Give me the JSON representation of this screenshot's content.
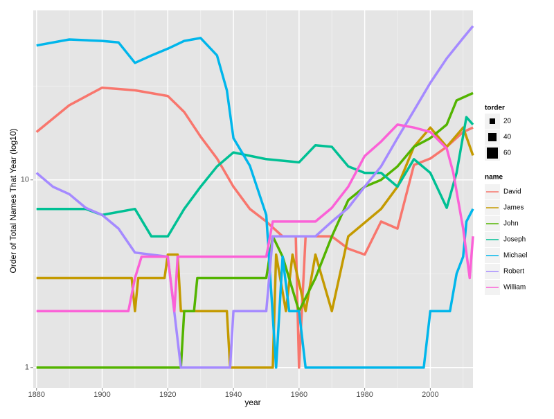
{
  "chart_data": {
    "type": "line",
    "x_label": "year",
    "y_label": "Order of Total Names That Year (log10)",
    "xlim": [
      1879,
      2013
    ],
    "xticks": [
      1880,
      1900,
      1920,
      1940,
      1960,
      1980,
      2000
    ],
    "xminor": [
      1890,
      1910,
      1930,
      1950,
      1970,
      1990,
      2010
    ],
    "ylim": [
      0.78,
      80
    ],
    "yticks": [
      1,
      10
    ],
    "yminor": [
      3.162,
      31.62
    ],
    "log_y": true,
    "grid": true,
    "size_legend": {
      "title": "torder",
      "labels": [
        20,
        40,
        60
      ]
    },
    "legend_title": "name",
    "series": [
      {
        "name": "David",
        "color": "#F8766D",
        "x": [
          1880,
          1890,
          1900,
          1910,
          1920,
          1925,
          1930,
          1935,
          1940,
          1945,
          1950,
          1955,
          1959,
          1960,
          1962,
          1970,
          1975,
          1980,
          1985,
          1990,
          1995,
          2000,
          2005,
          2010,
          2013
        ],
        "values": [
          18,
          25,
          31,
          30,
          28,
          23,
          17,
          13,
          9.2,
          7,
          6,
          5,
          5,
          1,
          5,
          5,
          4.3,
          4,
          6,
          5.5,
          12,
          13,
          15,
          18,
          19
        ]
      },
      {
        "name": "James",
        "color": "#C49A00",
        "x": [
          1880,
          1909,
          1910,
          1911,
          1919,
          1920,
          1923,
          1924,
          1938,
          1939,
          1952,
          1953,
          1956,
          1958,
          1962,
          1965,
          1970,
          1975,
          1985,
          1990,
          1995,
          2000,
          2005,
          2010,
          2013
        ],
        "values": [
          3,
          3,
          2,
          3,
          3,
          4,
          4,
          2,
          2,
          1,
          1,
          4,
          2,
          4,
          2,
          4,
          2,
          5,
          7,
          9.2,
          15,
          19,
          15,
          19,
          13.5
        ]
      },
      {
        "name": "John",
        "color": "#53B400",
        "x": [
          1880,
          1924,
          1925,
          1928,
          1929,
          1950,
          1952,
          1955,
          1960,
          1965,
          1970,
          1975,
          1980,
          1985,
          1990,
          1995,
          2000,
          2005,
          2008,
          2013
        ],
        "values": [
          1,
          1,
          2,
          2,
          3,
          3,
          5,
          3.9,
          2,
          3,
          5,
          7.8,
          9.2,
          10,
          11.8,
          15,
          16.7,
          19.7,
          26.5,
          29
        ]
      },
      {
        "name": "Joseph",
        "color": "#00C094",
        "x": [
          1880,
          1895,
          1900,
          1910,
          1915,
          1920,
          1925,
          1930,
          1935,
          1940,
          1950,
          1960,
          1965,
          1970,
          1975,
          1980,
          1985,
          1990,
          1995,
          2000,
          2005,
          2008,
          2011,
          2013
        ],
        "values": [
          7,
          7,
          6.5,
          7,
          5,
          5,
          7,
          9.2,
          11.8,
          14,
          12.9,
          12.4,
          15.3,
          15,
          11.8,
          10.9,
          10.9,
          9.2,
          12.9,
          10.9,
          7.1,
          10.9,
          21.6,
          19.7
        ]
      },
      {
        "name": "Michael",
        "color": "#00B6EB",
        "x": [
          1880,
          1890,
          1900,
          1905,
          1910,
          1915,
          1920,
          1925,
          1930,
          1935,
          1938,
          1940,
          1945,
          1950,
          1953,
          1955,
          1957,
          1960,
          1962,
          1998,
          2000,
          2006,
          2008,
          2010,
          2011,
          2013
        ],
        "values": [
          52,
          56,
          55,
          54,
          42,
          46,
          50,
          55,
          57,
          46,
          30,
          16.7,
          11.9,
          6.5,
          1,
          3.9,
          2,
          2,
          1,
          1,
          2,
          2,
          3.16,
          3.9,
          6,
          7
        ]
      },
      {
        "name": "Robert",
        "color": "#A58AFF",
        "x": [
          1880,
          1885,
          1890,
          1895,
          1900,
          1905,
          1910,
          1920,
          1924,
          1939,
          1940,
          1950,
          1952,
          1965,
          1970,
          1975,
          1980,
          1985,
          1990,
          1995,
          2000,
          2005,
          2010,
          2013
        ],
        "values": [
          10.9,
          9.2,
          8.4,
          7.1,
          6.5,
          5.5,
          4.1,
          3.9,
          1,
          1,
          2,
          2,
          5,
          5,
          6,
          7.1,
          9.2,
          11.8,
          16.7,
          23.4,
          32.9,
          44.4,
          57,
          66
        ]
      },
      {
        "name": "William",
        "color": "#FB61D7",
        "x": [
          1880,
          1908,
          1910,
          1912,
          1920,
          1922,
          1923,
          1950,
          1952,
          1965,
          1970,
          1975,
          1980,
          1985,
          1990,
          1995,
          2000,
          2005,
          2007,
          2010,
          2012,
          2013
        ],
        "values": [
          2,
          2,
          3,
          3.9,
          3.9,
          2,
          3.9,
          3.9,
          6,
          6,
          7.1,
          9.2,
          13.4,
          16,
          19.7,
          19,
          18,
          14.7,
          10.9,
          5.5,
          3,
          5
        ]
      }
    ]
  }
}
